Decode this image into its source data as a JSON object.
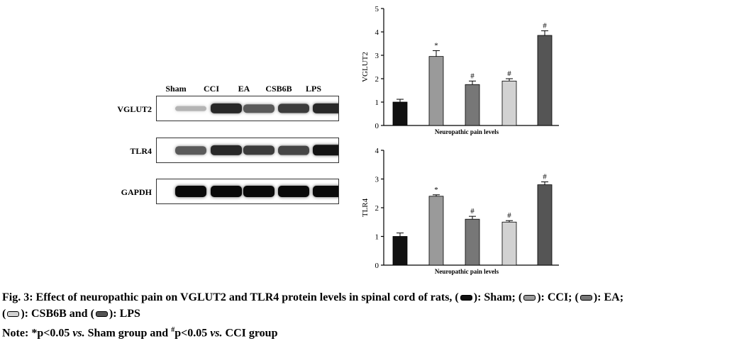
{
  "western_blot": {
    "lanes": [
      "Sham",
      "CCI",
      "EA",
      "CSB6B",
      "LPS"
    ],
    "rows": [
      {
        "label": "VGLUT2",
        "intensity": [
          0.15,
          0.85,
          0.6,
          0.75,
          0.85
        ]
      },
      {
        "label": "TLR4",
        "intensity": [
          0.6,
          0.85,
          0.75,
          0.7,
          0.95
        ]
      },
      {
        "label": "GAPDH",
        "intensity": [
          1,
          1,
          1,
          1,
          1
        ]
      }
    ]
  },
  "chart_data": [
    {
      "type": "bar",
      "ylabel": "VGLUT2",
      "xlabel": "Neuropathic pain levels",
      "categories": [
        "Sham",
        "CCI",
        "EA",
        "CSB6B",
        "LPS"
      ],
      "values": [
        1.0,
        2.95,
        1.75,
        1.9,
        3.85
      ],
      "errors": [
        0.12,
        0.25,
        0.15,
        0.1,
        0.2
      ],
      "annotations": [
        "",
        "*",
        "#",
        "#",
        "#"
      ],
      "ylim": [
        0,
        5
      ],
      "yticks": [
        "0",
        "1",
        "2",
        "3",
        "4",
        "5"
      ],
      "colors": [
        "#111111",
        "#9a9a9a",
        "#777777",
        "#d2d2d2",
        "#555555"
      ]
    },
    {
      "type": "bar",
      "ylabel": "TLR4",
      "xlabel": "Neuropathic pain levels",
      "categories": [
        "Sham",
        "CCI",
        "EA",
        "CSB6B",
        "LPS"
      ],
      "values": [
        1.0,
        2.4,
        1.6,
        1.5,
        2.8
      ],
      "errors": [
        0.12,
        0.05,
        0.1,
        0.05,
        0.1
      ],
      "annotations": [
        "",
        "*",
        "#",
        "#",
        "#"
      ],
      "ylim": [
        0,
        4
      ],
      "yticks": [
        "0",
        "1",
        "2",
        "3",
        "4"
      ],
      "colors": [
        "#111111",
        "#9a9a9a",
        "#777777",
        "#d2d2d2",
        "#555555"
      ]
    }
  ],
  "caption": {
    "line1_prefix": "Fig. 3: Effect of neuropathic pain on VGLUT2 and TLR4 protein levels in spinal cord of rats, (",
    "s1": "): Sham; (",
    "s2": "): CCI; (",
    "s3": "): EA;",
    "line2_prefix": "(",
    "s4": "): CSB6B and (",
    "s5": "): LPS",
    "note_prefix": "Note: *p<0.05 ",
    "vs1": "vs.",
    "note_mid": " Sham group and ",
    "sup": "#",
    "note_mid2": "p<0.05 ",
    "vs2": "vs.",
    "note_end": " CCI group",
    "swatch_colors": [
      "#111111",
      "#9a9a9a",
      "#777777",
      "#d2d2d2",
      "#555555"
    ]
  }
}
